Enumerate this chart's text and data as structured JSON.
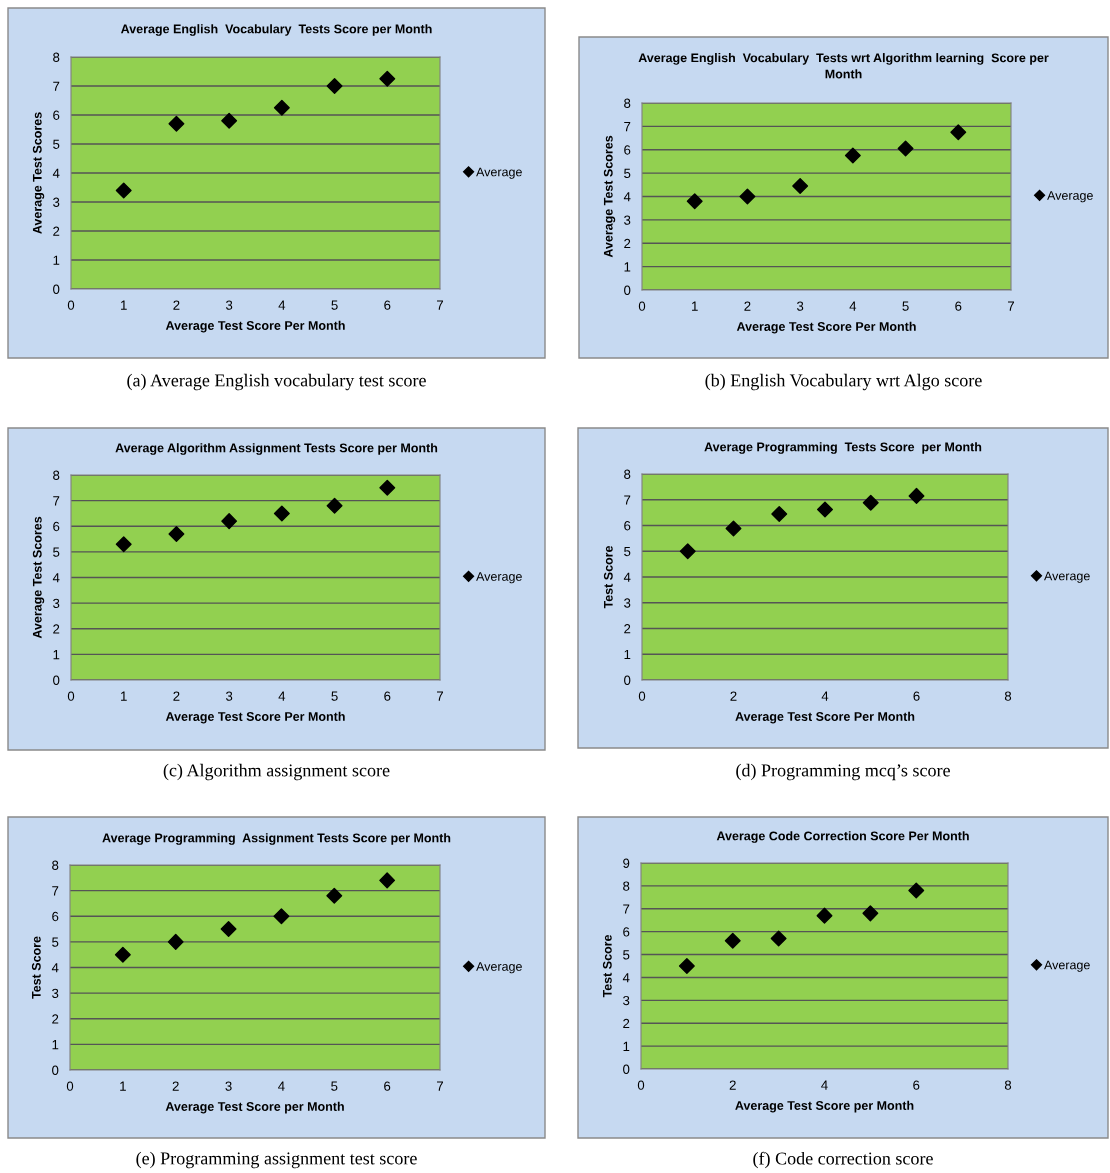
{
  "chart_data": [
    {
      "type": "scatter",
      "title": "Average English  Vocabulary  Tests Score per Month",
      "xlabel": "Average Test Score Per Month",
      "ylabel": "Average Test Scores",
      "x": [
        1,
        2,
        3,
        4,
        5,
        6
      ],
      "series": [
        {
          "name": "Average",
          "color": "#000000",
          "values": [
            3.4,
            5.7,
            5.8,
            6.25,
            7.0,
            7.25
          ]
        }
      ],
      "xlim": [
        0,
        7
      ],
      "xticks": [
        0,
        1,
        2,
        3,
        4,
        5,
        6,
        7
      ],
      "ylim": [
        0,
        8
      ],
      "yticks": [
        0,
        1,
        2,
        3,
        4,
        5,
        6,
        7,
        8
      ],
      "grid": "y",
      "legend": "right",
      "marker": "diamond",
      "annotations": [
        "(a) Average English vocabulary test score"
      ]
    },
    {
      "type": "scatter",
      "title": "Average English  Vocabulary  Tests wrt Algorithm learning  Score per\nMonth",
      "xlabel": "Average Test Score Per Month",
      "ylabel": "Average Test Scores",
      "x": [
        1,
        2,
        3,
        4,
        5,
        6
      ],
      "series": [
        {
          "name": "Average",
          "color": "#000000",
          "values": [
            3.8,
            4.0,
            4.45,
            5.75,
            6.05,
            6.75
          ]
        }
      ],
      "xlim": [
        0,
        7
      ],
      "xticks": [
        0,
        1,
        2,
        3,
        4,
        5,
        6,
        7
      ],
      "ylim": [
        0,
        8
      ],
      "yticks": [
        0,
        1,
        2,
        3,
        4,
        5,
        6,
        7,
        8
      ],
      "grid": "y",
      "legend": "right",
      "marker": "diamond",
      "annotations": [
        "(b) English Vocabulary wrt Algo score"
      ]
    },
    {
      "type": "scatter",
      "title": "Average Algorithm Assignment Tests Score per Month",
      "xlabel": "Average Test Score Per Month",
      "ylabel": "Average Test Scores",
      "x": [
        1,
        2,
        3,
        4,
        5,
        6
      ],
      "series": [
        {
          "name": "Average",
          "color": "#000000",
          "values": [
            5.3,
            5.7,
            6.2,
            6.5,
            6.8,
            7.5
          ]
        }
      ],
      "xlim": [
        0,
        7
      ],
      "xticks": [
        0,
        1,
        2,
        3,
        4,
        5,
        6,
        7
      ],
      "ylim": [
        0,
        8
      ],
      "yticks": [
        0,
        1,
        2,
        3,
        4,
        5,
        6,
        7,
        8
      ],
      "grid": "y",
      "legend": "right",
      "marker": "diamond",
      "annotations": [
        "(c) Algorithm assignment score"
      ]
    },
    {
      "type": "scatter",
      "title": "Average Programming  Tests Score  per Month",
      "xlabel": "Average Test Score Per Month",
      "ylabel": "Test Score",
      "x": [
        1,
        2,
        3,
        4,
        5,
        6
      ],
      "series": [
        {
          "name": "Average",
          "color": "#000000",
          "values": [
            5.0,
            5.88,
            6.45,
            6.62,
            6.88,
            7.15
          ]
        }
      ],
      "xlim": [
        0,
        8
      ],
      "xticks": [
        0,
        2,
        4,
        6,
        8
      ],
      "ylim": [
        0,
        8
      ],
      "yticks": [
        0,
        1,
        2,
        3,
        4,
        5,
        6,
        7,
        8
      ],
      "grid": "y",
      "legend": "right",
      "marker": "diamond",
      "annotations": [
        "(d) Programming mcq’s score"
      ]
    },
    {
      "type": "scatter",
      "title": "Average Programming  Assignment Tests Score per Month",
      "xlabel": "Average Test Score per Month",
      "ylabel": "Test Score",
      "x": [
        1,
        2,
        3,
        4,
        5,
        6
      ],
      "series": [
        {
          "name": "Average",
          "color": "#000000",
          "values": [
            4.5,
            5.0,
            5.5,
            6.0,
            6.8,
            7.4
          ]
        }
      ],
      "xlim": [
        0,
        7
      ],
      "xticks": [
        0,
        1,
        2,
        3,
        4,
        5,
        6,
        7
      ],
      "ylim": [
        0,
        8
      ],
      "yticks": [
        0,
        1,
        2,
        3,
        4,
        5,
        6,
        7,
        8
      ],
      "grid": "y",
      "legend": "right",
      "marker": "diamond",
      "annotations": [
        "(e) Programming assignment test score"
      ]
    },
    {
      "type": "scatter",
      "title": "Average Code Correction Score Per Month",
      "xlabel": "Average Test Score per Month",
      "ylabel": "Test Score",
      "x": [
        1,
        2,
        3,
        4,
        5,
        6
      ],
      "series": [
        {
          "name": "Average",
          "color": "#000000",
          "values": [
            4.5,
            5.6,
            5.7,
            6.7,
            6.8,
            7.8
          ]
        }
      ],
      "xlim": [
        0,
        8
      ],
      "xticks": [
        0,
        2,
        4,
        6,
        8
      ],
      "ylim": [
        0,
        9
      ],
      "yticks": [
        0,
        1,
        2,
        3,
        4,
        5,
        6,
        7,
        8,
        9
      ],
      "grid": "y",
      "legend": "right",
      "marker": "diamond",
      "annotations": [
        "(f) Code correction score"
      ]
    }
  ]
}
